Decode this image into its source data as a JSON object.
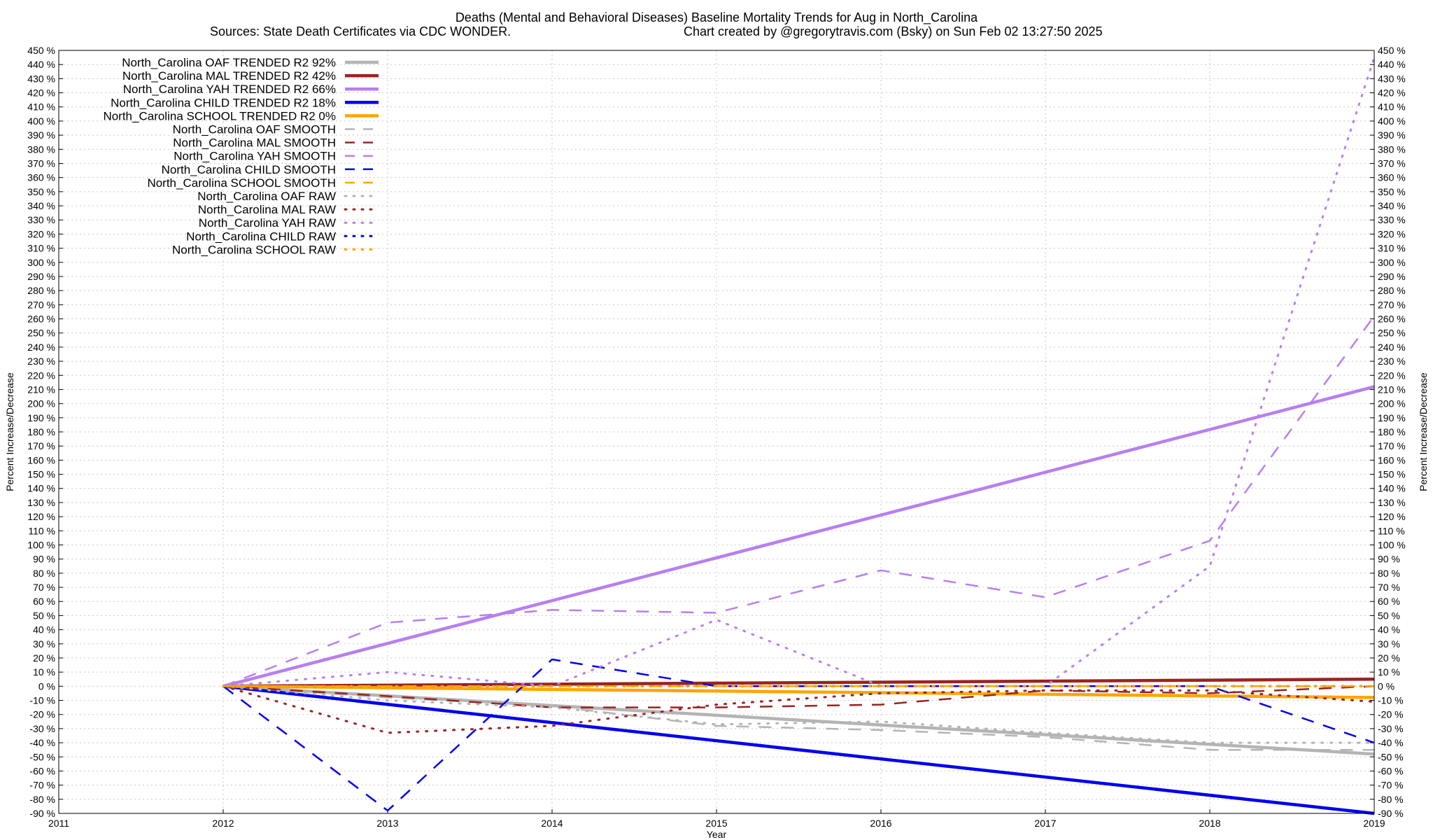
{
  "chart_data": {
    "type": "line",
    "title": "Deaths (Mental and Behavioral Diseases)  Baseline Mortality Trends for Aug in North_Carolina",
    "subtitle_left": "Sources: State Death Certificates via CDC WONDER.",
    "subtitle_right": "Chart created by @gregorytravis.com (Bsky) on Sun Feb 02 13:27:50 2025",
    "xlabel": "Year",
    "ylabel": "Percent Increase/Decrease",
    "xlim": [
      2011,
      2019
    ],
    "ylim": [
      -90,
      450
    ],
    "x_ticks": [
      "2011",
      "2012",
      "2013",
      "2014",
      "2015",
      "2016",
      "2017",
      "2018",
      "2019"
    ],
    "y_ticks": [
      "450 %",
      "440 %",
      "430 %",
      "420 %",
      "410 %",
      "400 %",
      "390 %",
      "380 %",
      "370 %",
      "360 %",
      "350 %",
      "340 %",
      "330 %",
      "320 %",
      "310 %",
      "300 %",
      "290 %",
      "280 %",
      "270 %",
      "260 %",
      "250 %",
      "240 %",
      "230 %",
      "220 %",
      "210 %",
      "200 %",
      "190 %",
      "180 %",
      "170 %",
      "160 %",
      "150 %",
      "140 %",
      "130 %",
      "120 %",
      "110 %",
      "100 %",
      "90 %",
      "80 %",
      "70 %",
      "60 %",
      "50 %",
      "40 %",
      "30 %",
      "20 %",
      "10 %",
      "0 %",
      "-10 %",
      "-20 %",
      "-30 %",
      "-40 %",
      "-50 %",
      "-60 %",
      "-70 %",
      "-80 %",
      "-90 %"
    ],
    "grid": true,
    "legend_position": "top-left",
    "series": [
      {
        "name": "North_Carolina OAF TRENDED R2  92%",
        "style": "solid",
        "color": "#b4b4b4",
        "x": [
          2012,
          2019
        ],
        "y": [
          0,
          -48
        ]
      },
      {
        "name": "North_Carolina MAL TRENDED R2  42%",
        "style": "solid",
        "color": "#9b2222",
        "x": [
          2012,
          2019
        ],
        "y": [
          0,
          5
        ]
      },
      {
        "name": "North_Carolina YAH TRENDED R2  66%",
        "style": "solid",
        "color": "#b77ff2",
        "x": [
          2012,
          2019
        ],
        "y": [
          0,
          212
        ]
      },
      {
        "name": "North_Carolina CHILD TRENDED R2  18%",
        "style": "solid",
        "color": "#0000ee",
        "x": [
          2012,
          2019
        ],
        "y": [
          0,
          -90
        ]
      },
      {
        "name": "North_Carolina SCHOOL TRENDED R2   0%",
        "style": "solid",
        "color": "#ffa500",
        "x": [
          2012,
          2019
        ],
        "y": [
          0,
          -8
        ]
      },
      {
        "name": "North_Carolina OAF SMOOTH",
        "style": "dashed",
        "color": "#b4b4b4",
        "x": [
          2012,
          2013,
          2014,
          2015,
          2016,
          2017,
          2018,
          2019
        ],
        "y": [
          0,
          -8,
          -14,
          -28,
          -31,
          -36,
          -45,
          -45
        ]
      },
      {
        "name": "North_Carolina MAL SMOOTH",
        "style": "dashed",
        "color": "#9b2222",
        "x": [
          2012,
          2013,
          2014,
          2015,
          2016,
          2017,
          2018,
          2019
        ],
        "y": [
          0,
          -7,
          -15,
          -15,
          -13,
          -3,
          -5,
          0
        ]
      },
      {
        "name": "North_Carolina YAH SMOOTH",
        "style": "dashed",
        "color": "#b77ff2",
        "x": [
          2012,
          2013,
          2014,
          2015,
          2016,
          2017,
          2018,
          2019
        ],
        "y": [
          0,
          45,
          54,
          52,
          82,
          63,
          103,
          262
        ]
      },
      {
        "name": "North_Carolina CHILD SMOOTH",
        "style": "dashed",
        "color": "#0000ee",
        "x": [
          2012,
          2013,
          2014,
          2015,
          2016,
          2017,
          2018,
          2019
        ],
        "y": [
          0,
          -88,
          19,
          0,
          0,
          0,
          0,
          -40
        ]
      },
      {
        "name": "North_Carolina SCHOOL SMOOTH",
        "style": "dashed",
        "color": "#ffa500",
        "x": [
          2012,
          2013,
          2014,
          2015,
          2016,
          2017,
          2018,
          2019
        ],
        "y": [
          0,
          0,
          0,
          0,
          0,
          0,
          0,
          0
        ]
      },
      {
        "name": "North_Carolina OAF RAW",
        "style": "dotted",
        "color": "#b4b4b4",
        "x": [
          2012,
          2013,
          2014,
          2015,
          2016,
          2017,
          2018,
          2019
        ],
        "y": [
          0,
          -10,
          -15,
          -27,
          -25,
          -33,
          -40,
          -40
        ]
      },
      {
        "name": "North_Carolina MAL RAW",
        "style": "dotted",
        "color": "#9b2222",
        "x": [
          2012,
          2013,
          2014,
          2015,
          2016,
          2017,
          2018,
          2019
        ],
        "y": [
          0,
          -33,
          -28,
          -13,
          -5,
          -3,
          -3,
          -11
        ]
      },
      {
        "name": "North_Carolina YAH RAW",
        "style": "dotted",
        "color": "#b77ff2",
        "x": [
          2012,
          2013,
          2014,
          2015,
          2016,
          2017,
          2018,
          2019
        ],
        "y": [
          0,
          10,
          0,
          47,
          0,
          0,
          85,
          445
        ]
      },
      {
        "name": "North_Carolina CHILD RAW",
        "style": "dotted",
        "color": "#0000ee",
        "x": [
          2012,
          2013,
          2014,
          2015,
          2016,
          2017,
          2018,
          2019
        ],
        "y": [
          0,
          0,
          0,
          0,
          0,
          0,
          0,
          0
        ]
      },
      {
        "name": "North_Carolina SCHOOL RAW",
        "style": "dotted",
        "color": "#ffa500",
        "x": [
          2012,
          2013,
          2014,
          2015,
          2016,
          2017,
          2018,
          2019
        ],
        "y": [
          0,
          0,
          0,
          0,
          0,
          0,
          0,
          0
        ]
      }
    ]
  }
}
